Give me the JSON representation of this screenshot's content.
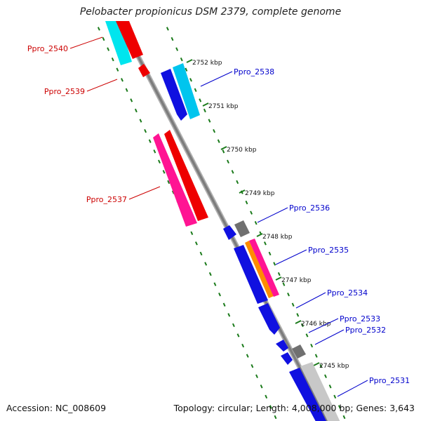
{
  "title": "Pelobacter propionicus DSM 2379, complete genome",
  "footer": {
    "accession": "Accession: NC_008609",
    "summary": "Topology: circular; Length: 4,008,000 bp; Genes: 3,643"
  },
  "colors": {
    "backbone": "#808080",
    "tick": "#1a7a1a",
    "label_red": "#cc0000",
    "label_blue": "#0000cc"
  },
  "scale_labels": [
    "2752 kbp",
    "2751 kbp",
    "2750 kbp",
    "2749 kbp",
    "2748 kbp",
    "2747 kbp",
    "2746 kbp",
    "2745 kbp"
  ],
  "genes": [
    {
      "name": "Ppro_2540",
      "strand": "reverse",
      "label_color": "#cc0000"
    },
    {
      "name": "Ppro_2539",
      "strand": "reverse",
      "label_color": "#cc0000"
    },
    {
      "name": "Ppro_2538",
      "strand": "forward",
      "label_color": "#0000cc"
    },
    {
      "name": "Ppro_2537",
      "strand": "reverse",
      "label_color": "#cc0000"
    },
    {
      "name": "Ppro_2536",
      "strand": "forward",
      "label_color": "#0000cc"
    },
    {
      "name": "Ppro_2535",
      "strand": "forward",
      "label_color": "#0000cc"
    },
    {
      "name": "Ppro_2534",
      "strand": "forward",
      "label_color": "#0000cc"
    },
    {
      "name": "Ppro_2533",
      "strand": "forward",
      "label_color": "#0000cc"
    },
    {
      "name": "Ppro_2532",
      "strand": "forward",
      "label_color": "#0000cc"
    },
    {
      "name": "Ppro_2531",
      "strand": "forward",
      "label_color": "#0000cc"
    }
  ]
}
